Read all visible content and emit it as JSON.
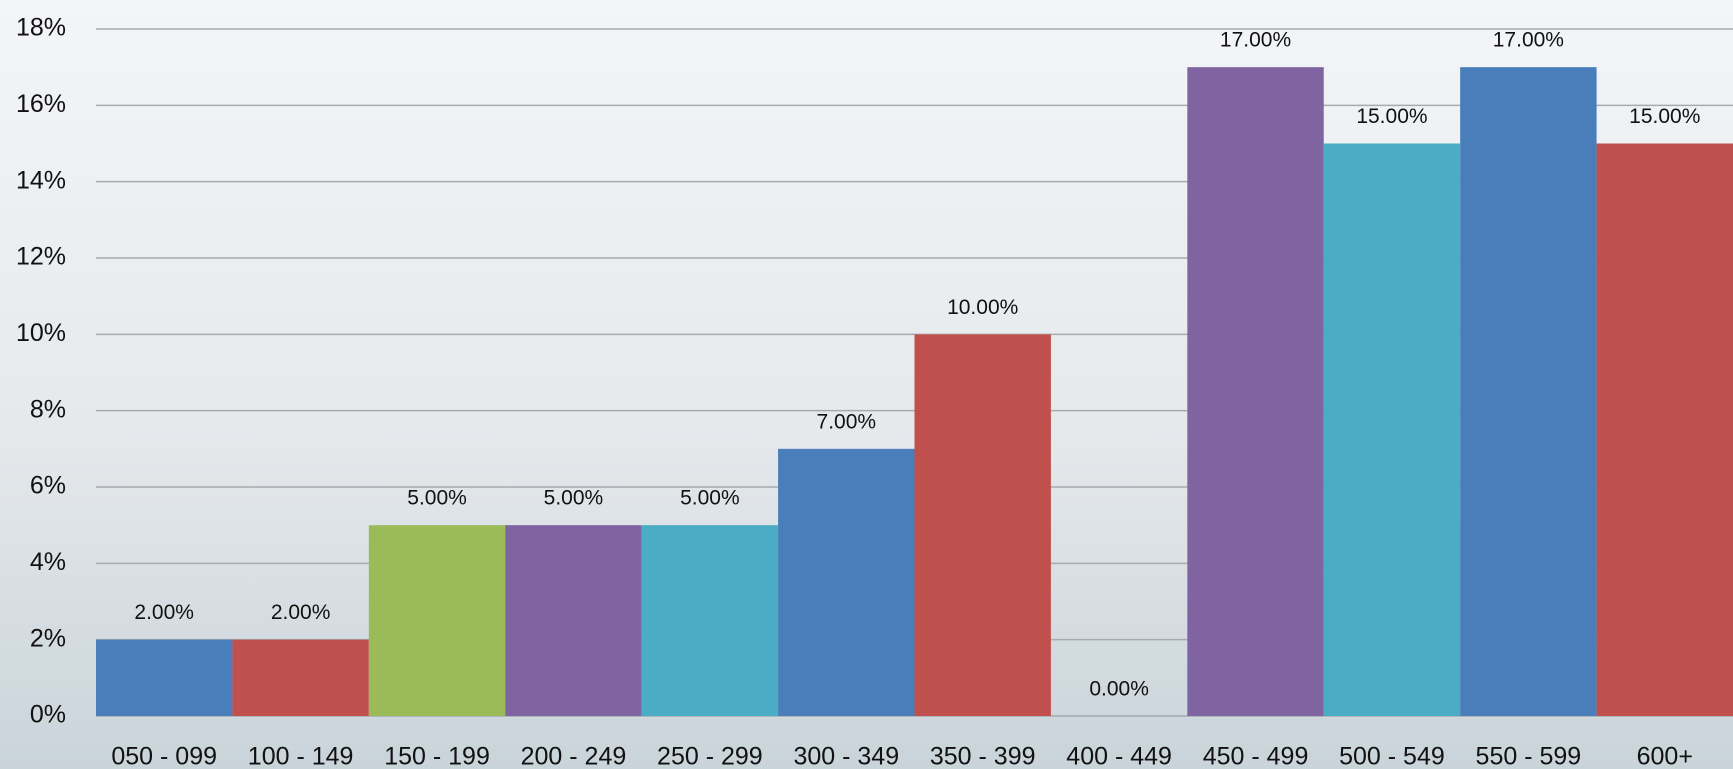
{
  "chart_data": {
    "type": "bar",
    "categories": [
      "050 - 099",
      "100 - 149",
      "150 - 199",
      "200 - 249",
      "250 - 299",
      "300 - 349",
      "350 - 399",
      "400 - 449",
      "450 - 499",
      "500 - 549",
      "550 - 599",
      "600+"
    ],
    "values": [
      2,
      2,
      5,
      5,
      5,
      7,
      10,
      0,
      17,
      15,
      17,
      15
    ],
    "value_labels": [
      "2.00%",
      "2.00%",
      "5.00%",
      "5.00%",
      "5.00%",
      "7.00%",
      "10.00%",
      "0.00%",
      "17.00%",
      "15.00%",
      "17.00%",
      "15.00%"
    ],
    "colors": [
      "#4a7ebb",
      "#c0504d",
      "#9bbb59",
      "#8064a2",
      "#4bacc6",
      "#4a7ebb",
      "#c0504d",
      "#9bbb59",
      "#8064a2",
      "#4bacc6",
      "#4a7ebb",
      "#c0504d"
    ],
    "ylim": [
      0,
      18
    ],
    "yticks": [
      {
        "value": 0,
        "label": "0%"
      },
      {
        "value": 2,
        "label": "2%"
      },
      {
        "value": 4,
        "label": "4%"
      },
      {
        "value": 6,
        "label": "6%"
      },
      {
        "value": 8,
        "label": "8%"
      },
      {
        "value": 10,
        "label": "10%"
      },
      {
        "value": 12,
        "label": "12%"
      },
      {
        "value": 14,
        "label": "14%"
      },
      {
        "value": 16,
        "label": "16%"
      },
      {
        "value": 18,
        "label": "18%"
      }
    ],
    "grid": true
  }
}
